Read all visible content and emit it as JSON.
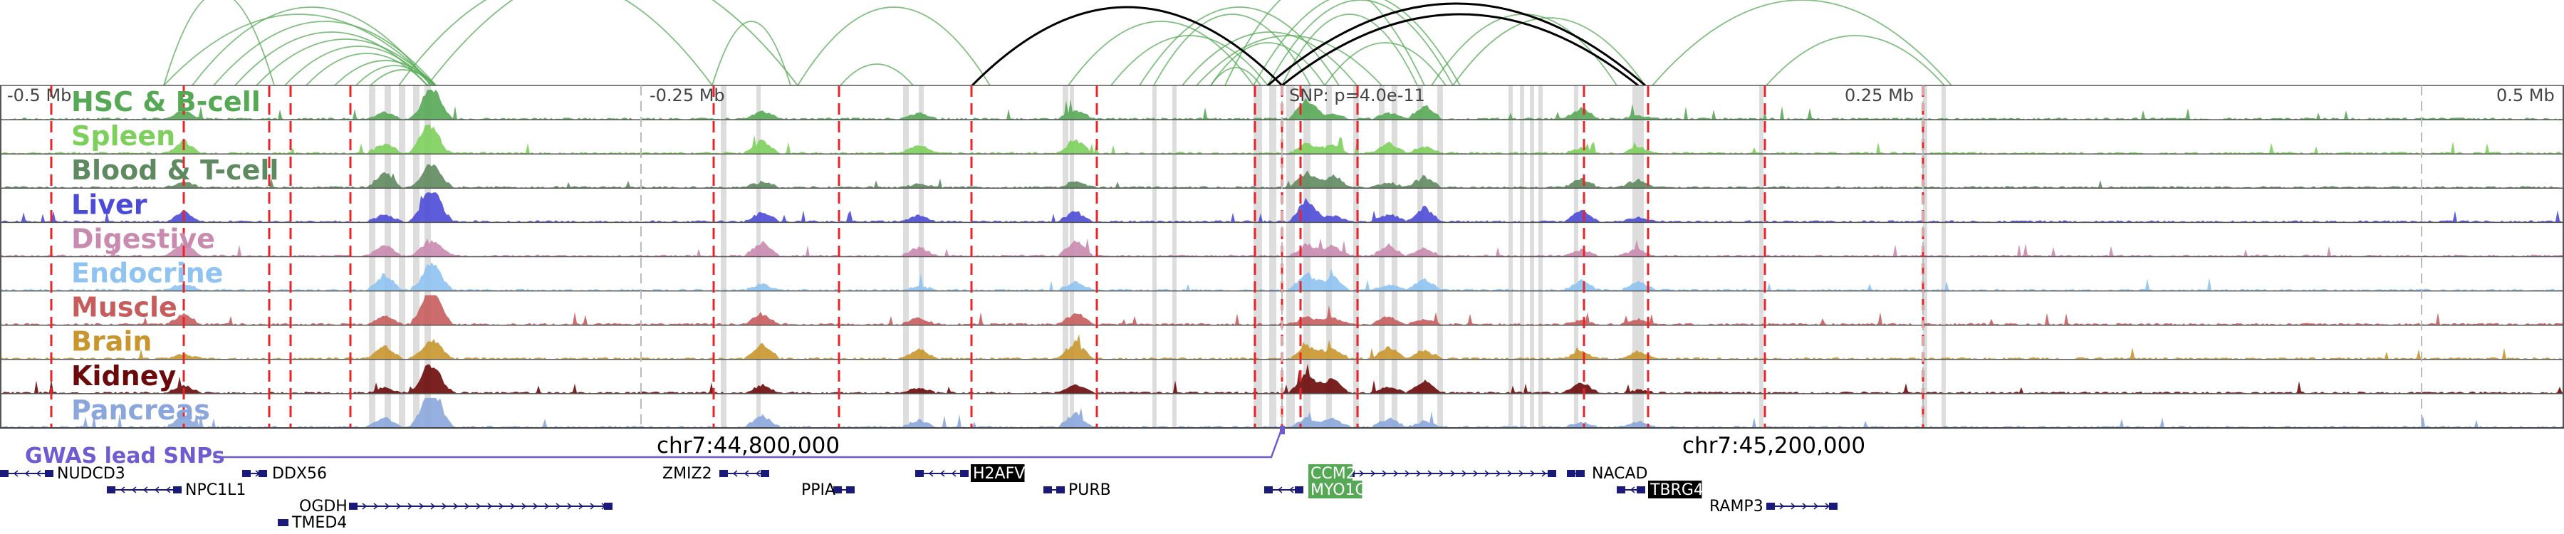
{
  "tracks": [
    {
      "label": "HSC & B-cell",
      "color": "#55a955"
    },
    {
      "label": "Spleen",
      "color": "#7cd05b"
    },
    {
      "label": "Blood & T-cell",
      "color": "#5f8a5f"
    },
    {
      "label": "Liver",
      "color": "#4b4bd8"
    },
    {
      "label": "Digestive",
      "color": "#c98aaf"
    },
    {
      "label": "Endocrine",
      "color": "#8ec3f2"
    },
    {
      "label": "Muscle",
      "color": "#c65c5c"
    },
    {
      "label": "Brain",
      "color": "#c8962c"
    },
    {
      "label": "Kidney",
      "color": "#6b0a0a"
    },
    {
      "label": "Pancreas",
      "color": "#8aa6dc"
    }
  ],
  "position_labels": {
    "left": "-0.5 Mb",
    "left_mid": "-0.25 Mb",
    "snp": "SNP: p=4.0e-11",
    "right_mid": "0.25 Mb",
    "right": "0.5 Mb"
  },
  "gwas_label": "GWAS lead SNPs",
  "coordinates": [
    "chr7:44,800,000",
    "chr7:45,200,000"
  ],
  "genes": [
    {
      "name": "NUDCD3",
      "highlight": null
    },
    {
      "name": "DDX56",
      "highlight": null
    },
    {
      "name": "NPC1L1",
      "highlight": null
    },
    {
      "name": "OGDH",
      "highlight": null
    },
    {
      "name": "TMED4",
      "highlight": null
    },
    {
      "name": "ZMIZ2",
      "highlight": null
    },
    {
      "name": "PPIA",
      "highlight": null
    },
    {
      "name": "H2AFV",
      "highlight": "#000000"
    },
    {
      "name": "PURB",
      "highlight": null
    },
    {
      "name": "CCM2",
      "highlight": "#55a955"
    },
    {
      "name": "MYO1G",
      "highlight": "#55a955"
    },
    {
      "name": "NACAD",
      "highlight": null
    },
    {
      "name": "TBRG4",
      "highlight": "#000000"
    },
    {
      "name": "RAMP3",
      "highlight": null
    }
  ],
  "colors": {
    "loop": "#55a955",
    "loop_highlight": "#000000",
    "peak_marker": "#e8242a",
    "highlight_band": "#dddddd",
    "track_border": "#555555",
    "gwas_snp": "#6f5cd0"
  }
}
